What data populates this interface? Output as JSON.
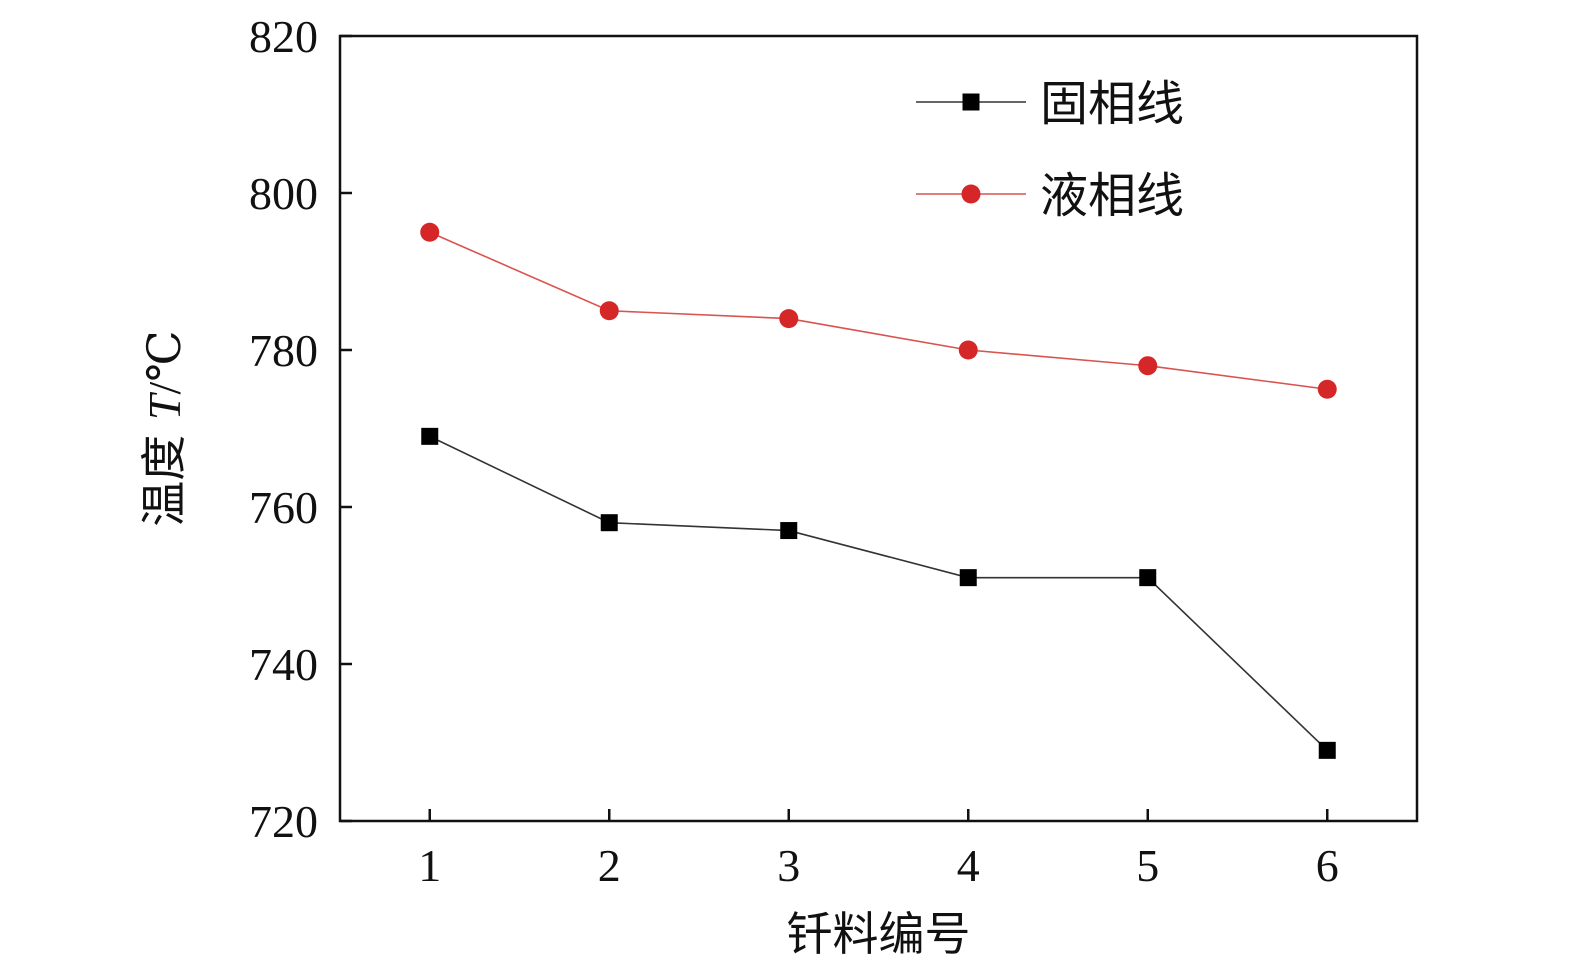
{
  "chart_data": {
    "type": "line",
    "categories": [
      "1",
      "2",
      "3",
      "4",
      "5",
      "6"
    ],
    "x": [
      1,
      2,
      3,
      4,
      5,
      6
    ],
    "series": [
      {
        "name": "固相线",
        "values": [
          769,
          758,
          757,
          751,
          751,
          729
        ],
        "color": "#000000",
        "marker": "square"
      },
      {
        "name": "液相线",
        "values": [
          795,
          785,
          784,
          780,
          778,
          775
        ],
        "color": "#d62728",
        "marker": "circle"
      }
    ],
    "xlabel": "钎料编号",
    "ylabel": {
      "prefix": "温度 ",
      "symbol": "T",
      "unit": "/℃"
    },
    "ylim": [
      720,
      820
    ],
    "yticks": [
      720,
      740,
      760,
      780,
      800,
      820
    ],
    "xlim": [
      0.5,
      6.5
    ],
    "grid": false,
    "legend_position": "top-right"
  }
}
